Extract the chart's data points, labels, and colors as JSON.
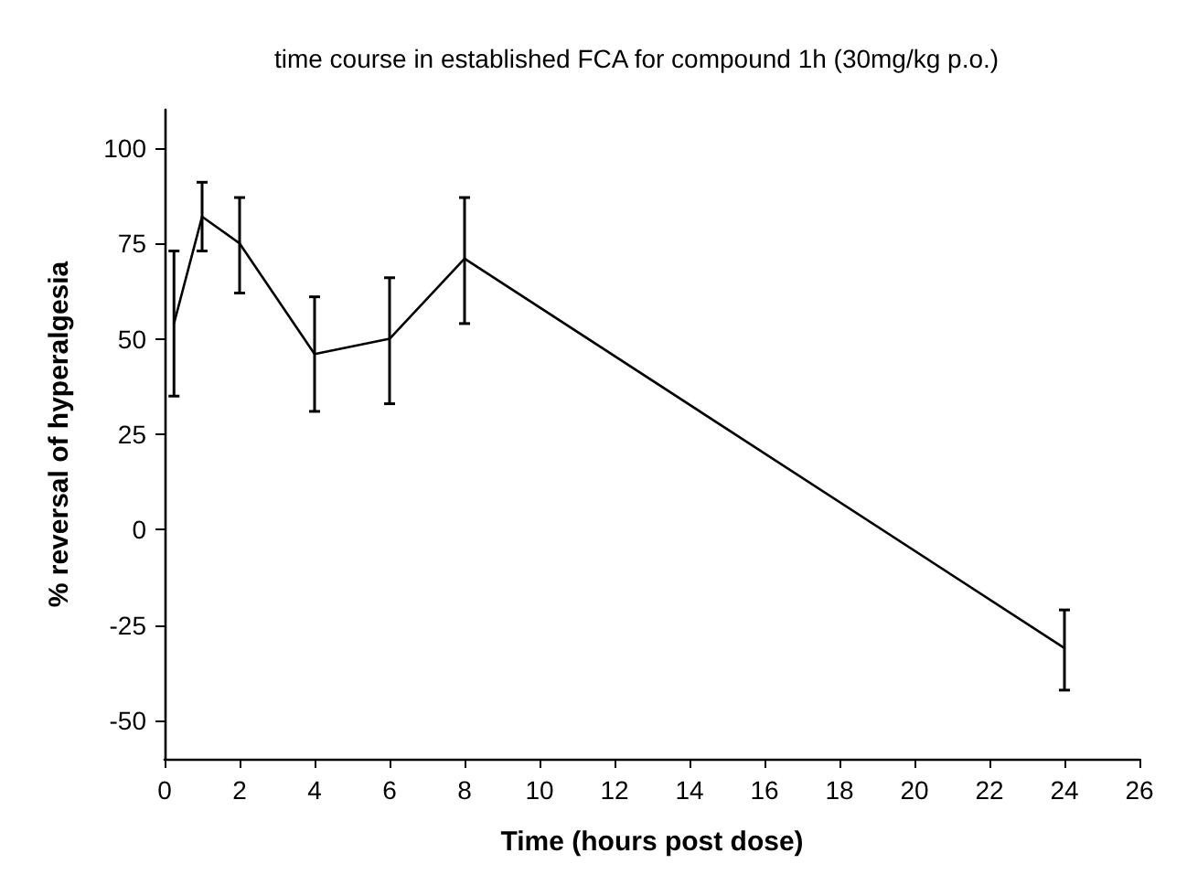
{
  "chart_data": {
    "type": "line",
    "title": "time course in established FCA for compound 1h (30mg/kg p.o.)",
    "xlabel": "Time (hours post dose)",
    "ylabel": "% reversal of hyperalgesia",
    "x": [
      0.25,
      1,
      2,
      4,
      6,
      8,
      24
    ],
    "series": [
      {
        "color": "#000000",
        "values": [
          54,
          82,
          75,
          46,
          50,
          71,
          -31
        ],
        "errors": [
          [
            35,
            73
          ],
          [
            73,
            91
          ],
          [
            62,
            87
          ],
          [
            31,
            61
          ],
          [
            33,
            66
          ],
          [
            54,
            87
          ],
          [
            -42,
            -21
          ]
        ]
      }
    ],
    "xlim": [
      0,
      26
    ],
    "xticks": [
      0,
      2,
      4,
      6,
      8,
      10,
      12,
      14,
      16,
      18,
      20,
      22,
      24,
      26
    ],
    "ylim": [
      -60,
      110
    ],
    "yticks": [
      -50,
      -25,
      0,
      25,
      50,
      75,
      100
    ],
    "grid": false,
    "marker": "none",
    "line_style": "solid"
  }
}
